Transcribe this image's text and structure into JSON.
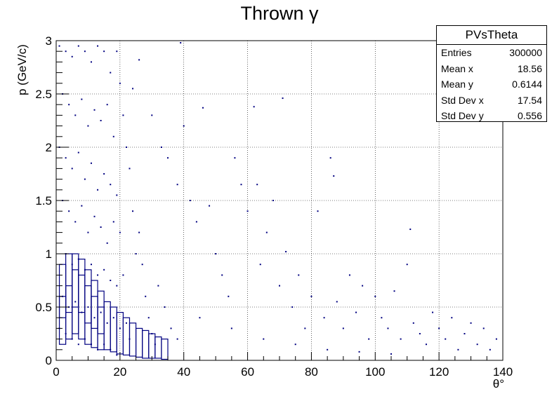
{
  "chart_data": {
    "type": "scatter",
    "title": "Thrown γ",
    "xlabel": "θ°",
    "ylabel": "p (GeV/c)",
    "xlim": [
      0,
      140
    ],
    "ylim": [
      0,
      3
    ],
    "xticks": [
      0,
      20,
      40,
      60,
      80,
      100,
      120,
      140
    ],
    "yticks": [
      0,
      0.5,
      1,
      1.5,
      2,
      2.5,
      3
    ],
    "grid": true,
    "marker_color": "#000080",
    "stats_box": {
      "name": "PVsTheta",
      "entries": [
        {
          "label": "Entries",
          "value": "300000"
        },
        {
          "label": "Mean x",
          "value": "18.56"
        },
        {
          "label": "Mean y",
          "value": "0.6144"
        },
        {
          "label": "Std Dev x",
          "value": "17.54"
        },
        {
          "label": "Std Dev y",
          "value": "0.556"
        }
      ]
    },
    "points": [
      [
        1,
        2.95
      ],
      [
        3,
        2.9
      ],
      [
        5,
        2.85
      ],
      [
        7,
        2.95
      ],
      [
        9,
        2.9
      ],
      [
        11,
        2.8
      ],
      [
        13,
        2.95
      ],
      [
        15,
        2.9
      ],
      [
        17,
        2.7
      ],
      [
        19,
        2.9
      ],
      [
        20,
        2.6
      ],
      [
        2,
        2.5
      ],
      [
        4,
        2.4
      ],
      [
        6,
        2.3
      ],
      [
        8,
        2.45
      ],
      [
        10,
        2.2
      ],
      [
        12,
        2.35
      ],
      [
        14,
        2.25
      ],
      [
        16,
        2.4
      ],
      [
        18,
        2.1
      ],
      [
        21,
        2.3
      ],
      [
        22,
        2.0
      ],
      [
        1,
        2.0
      ],
      [
        3,
        1.9
      ],
      [
        5,
        1.8
      ],
      [
        7,
        1.95
      ],
      [
        9,
        1.7
      ],
      [
        11,
        1.85
      ],
      [
        13,
        1.6
      ],
      [
        15,
        1.75
      ],
      [
        17,
        1.65
      ],
      [
        19,
        1.55
      ],
      [
        23,
        1.8
      ],
      [
        2,
        1.5
      ],
      [
        4,
        1.4
      ],
      [
        6,
        1.3
      ],
      [
        8,
        1.45
      ],
      [
        10,
        1.2
      ],
      [
        12,
        1.35
      ],
      [
        14,
        1.25
      ],
      [
        16,
        1.1
      ],
      [
        18,
        1.3
      ],
      [
        20,
        1.2
      ],
      [
        24,
        1.4
      ],
      [
        3,
        1.0
      ],
      [
        5,
        0.9
      ],
      [
        7,
        0.95
      ],
      [
        9,
        0.85
      ],
      [
        11,
        0.9
      ],
      [
        13,
        0.8
      ],
      [
        15,
        0.85
      ],
      [
        17,
        0.75
      ],
      [
        19,
        0.7
      ],
      [
        21,
        0.8
      ],
      [
        25,
        1.0
      ],
      [
        2,
        0.6
      ],
      [
        4,
        0.5
      ],
      [
        6,
        0.55
      ],
      [
        8,
        0.45
      ],
      [
        10,
        0.5
      ],
      [
        12,
        0.4
      ],
      [
        14,
        0.45
      ],
      [
        16,
        0.35
      ],
      [
        18,
        0.4
      ],
      [
        20,
        0.3
      ],
      [
        22,
        0.35
      ],
      [
        1,
        0.3
      ],
      [
        3,
        0.25
      ],
      [
        5,
        0.2
      ],
      [
        7,
        0.15
      ],
      [
        9,
        0.2
      ],
      [
        11,
        0.15
      ],
      [
        13,
        0.1
      ],
      [
        15,
        0.15
      ],
      [
        17,
        0.1
      ],
      [
        19,
        0.05
      ],
      [
        23,
        0.2
      ],
      [
        26,
        1.2
      ],
      [
        27,
        0.9
      ],
      [
        28,
        0.6
      ],
      [
        29,
        0.4
      ],
      [
        30,
        0.25
      ],
      [
        31,
        0.15
      ],
      [
        32,
        0.7
      ],
      [
        34,
        0.5
      ],
      [
        36,
        0.3
      ],
      [
        38,
        0.2
      ],
      [
        39,
        2.98
      ],
      [
        26,
        2.82
      ],
      [
        24,
        2.55
      ],
      [
        30,
        2.3
      ],
      [
        33,
        2.0
      ],
      [
        35,
        1.9
      ],
      [
        38,
        1.65
      ],
      [
        40,
        2.2
      ],
      [
        42,
        1.5
      ],
      [
        44,
        1.3
      ],
      [
        46,
        2.37
      ],
      [
        48,
        1.45
      ],
      [
        50,
        1.0
      ],
      [
        52,
        0.8
      ],
      [
        54,
        0.6
      ],
      [
        56,
        1.9
      ],
      [
        58,
        1.65
      ],
      [
        60,
        1.4
      ],
      [
        62,
        2.38
      ],
      [
        63,
        1.65
      ],
      [
        64,
        0.9
      ],
      [
        66,
        1.2
      ],
      [
        68,
        1.5
      ],
      [
        70,
        0.7
      ],
      [
        71,
        2.46
      ],
      [
        72,
        1.02
      ],
      [
        74,
        0.5
      ],
      [
        76,
        0.8
      ],
      [
        78,
        0.3
      ],
      [
        80,
        0.6
      ],
      [
        82,
        1.4
      ],
      [
        84,
        0.4
      ],
      [
        86,
        1.9
      ],
      [
        87,
        1.73
      ],
      [
        88,
        0.55
      ],
      [
        90,
        0.3
      ],
      [
        92,
        0.8
      ],
      [
        94,
        0.45
      ],
      [
        96,
        0.7
      ],
      [
        98,
        0.2
      ],
      [
        100,
        0.6
      ],
      [
        102,
        0.4
      ],
      [
        104,
        0.3
      ],
      [
        106,
        0.65
      ],
      [
        108,
        0.2
      ],
      [
        110,
        0.9
      ],
      [
        111,
        1.23
      ],
      [
        112,
        0.35
      ],
      [
        114,
        0.25
      ],
      [
        116,
        0.15
      ],
      [
        118,
        0.45
      ],
      [
        120,
        0.3
      ],
      [
        122,
        0.2
      ],
      [
        124,
        0.4
      ],
      [
        126,
        0.1
      ],
      [
        128,
        0.25
      ],
      [
        130,
        0.35
      ],
      [
        132,
        0.15
      ],
      [
        134,
        0.3
      ],
      [
        136,
        0.1
      ],
      [
        138,
        0.2
      ],
      [
        45,
        0.4
      ],
      [
        55,
        0.3
      ],
      [
        65,
        0.2
      ],
      [
        75,
        0.15
      ],
      [
        85,
        0.1
      ],
      [
        95,
        0.08
      ],
      [
        105,
        0.06
      ]
    ],
    "boxes": [
      [
        2,
        0.4,
        0.6
      ],
      [
        4,
        0.45,
        0.7
      ],
      [
        6,
        0.5,
        0.85
      ],
      [
        8,
        0.45,
        0.8
      ],
      [
        10,
        0.35,
        0.7
      ],
      [
        12,
        0.3,
        0.6
      ],
      [
        14,
        0.25,
        0.5
      ],
      [
        2,
        0.15,
        0.9
      ],
      [
        4,
        0.2,
        1.0
      ],
      [
        6,
        0.25,
        1.0
      ],
      [
        8,
        0.2,
        0.95
      ],
      [
        10,
        0.15,
        0.85
      ],
      [
        12,
        0.12,
        0.75
      ],
      [
        14,
        0.1,
        0.65
      ],
      [
        16,
        0.1,
        0.55
      ],
      [
        18,
        0.08,
        0.5
      ],
      [
        20,
        0.06,
        0.45
      ],
      [
        22,
        0.05,
        0.4
      ],
      [
        24,
        0.04,
        0.35
      ],
      [
        26,
        0.03,
        0.3
      ],
      [
        28,
        0.02,
        0.28
      ],
      [
        30,
        0.02,
        0.25
      ],
      [
        32,
        0.02,
        0.22
      ],
      [
        34,
        0.01,
        0.2
      ]
    ]
  }
}
